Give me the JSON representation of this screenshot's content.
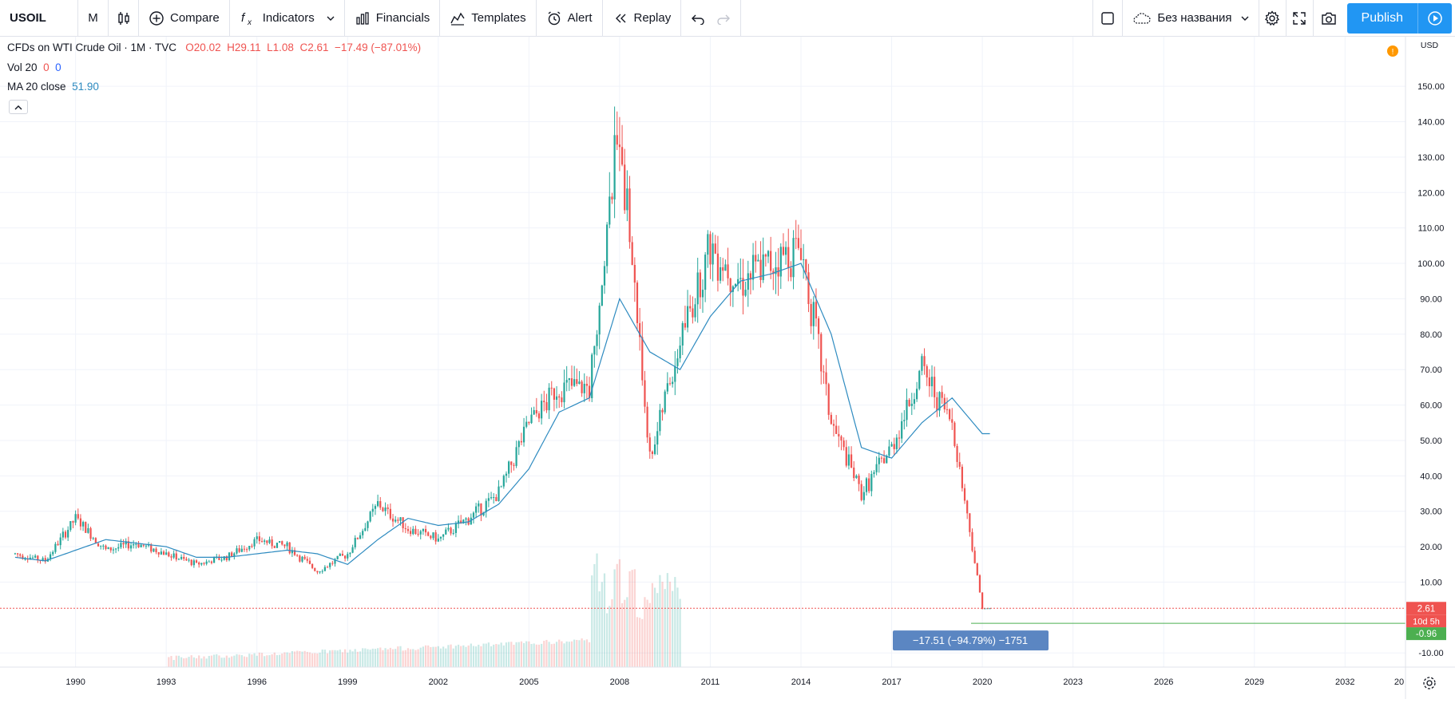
{
  "toolbar": {
    "symbol": "USOIL",
    "interval": "M",
    "compare": "Compare",
    "indicators": "Indicators",
    "financials": "Financials",
    "templates": "Templates",
    "alert": "Alert",
    "replay": "Replay",
    "layout_name": "Без названия",
    "publish": "Publish"
  },
  "legend": {
    "title": "CFDs on WTI Crude Oil · 1M · TVC",
    "o": "O20.02",
    "h": "H29.11",
    "l": "L1.08",
    "c": "C2.61",
    "change": "−17.49 (−87.01%)",
    "vol_label": "Vol 20",
    "vol_v1": "0",
    "vol_v2": "0",
    "ma_label": "MA 20 close",
    "ma_value": "51.90"
  },
  "price_axis": {
    "currency": "USD",
    "ticks": [
      "150.00",
      "140.00",
      "130.00",
      "120.00",
      "110.00",
      "100.00",
      "90.00",
      "80.00",
      "70.00",
      "60.00",
      "50.00",
      "40.00",
      "30.00",
      "20.00",
      "10.00",
      "-10.00"
    ],
    "last_price": "2.61",
    "countdown": "10d 5h",
    "cursor_price": "-0.96"
  },
  "time_axis": {
    "ticks": [
      "1990",
      "1993",
      "1996",
      "1999",
      "2002",
      "2005",
      "2008",
      "2011",
      "2014",
      "2017",
      "2020",
      "2023",
      "2026",
      "2029",
      "2032",
      "20"
    ]
  },
  "measure": {
    "label": "−17.51 (−94.79%) −1751"
  },
  "colors": {
    "up": "#26a69a",
    "down": "#ef5350",
    "ma": "#2e8bc0",
    "accent": "#2196f3"
  },
  "chart_data": {
    "type": "candlestick",
    "interval": "monthly",
    "y_unit": "USD",
    "ohlc_last": {
      "open": 20.02,
      "high": 29.11,
      "low": 1.08,
      "close": 2.61
    },
    "close_by_year": {
      "x": [
        1988,
        1989,
        1990,
        1991,
        1992,
        1993,
        1994,
        1995,
        1996,
        1997,
        1998,
        1999,
        2000,
        2001,
        2002,
        2003,
        2004,
        2005,
        2006,
        2007,
        2008,
        2009,
        2010,
        2011,
        2012,
        2013,
        2014,
        2015,
        2016,
        2017,
        2018,
        2019,
        2020
      ],
      "y": [
        18,
        16,
        28,
        19,
        21,
        18,
        15,
        17,
        22,
        20,
        13,
        18,
        32,
        25,
        22,
        28,
        35,
        55,
        65,
        65,
        140,
        45,
        78,
        105,
        95,
        100,
        105,
        55,
        35,
        48,
        70,
        55,
        2.61
      ]
    },
    "ma20_by_year": {
      "x": [
        1988,
        1989,
        1990,
        1991,
        1992,
        1993,
        1994,
        1995,
        1996,
        1997,
        1998,
        1999,
        2000,
        2001,
        2002,
        2003,
        2004,
        2005,
        2006,
        2007,
        2008,
        2009,
        2010,
        2011,
        2012,
        2013,
        2014,
        2015,
        2016,
        2017,
        2018,
        2019,
        2020
      ],
      "y": [
        17,
        16,
        19,
        22,
        21,
        20,
        17,
        17,
        18,
        19,
        18,
        15,
        22,
        28,
        26,
        27,
        32,
        42,
        58,
        62,
        90,
        75,
        70,
        85,
        95,
        97,
        100,
        80,
        48,
        45,
        55,
        62,
        51.9
      ]
    },
    "x_range": [
      1987.5,
      2034
    ],
    "y_range": [
      -14,
      164
    ]
  }
}
